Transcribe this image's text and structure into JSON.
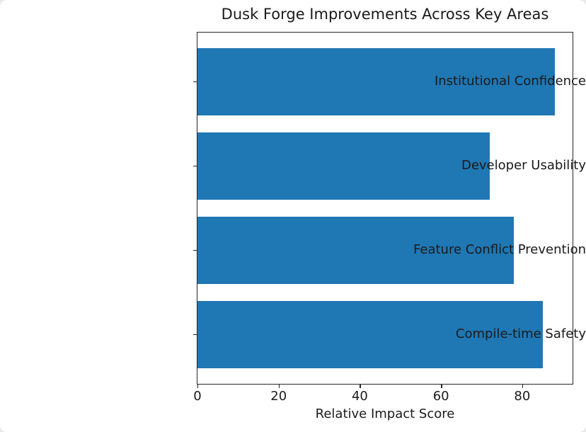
{
  "chart_data": {
    "type": "bar",
    "orientation": "horizontal",
    "title": "Dusk Forge Improvements Across Key Areas",
    "categories": [
      "Institutional Confidence",
      "Developer Usability",
      "Feature Conflict Prevention",
      "Compile-time Safety"
    ],
    "values": [
      88,
      72,
      78,
      85
    ],
    "xlabel": "Relative Impact Score",
    "ylabel": "",
    "xlim": [
      0,
      92.4
    ],
    "xticks": [
      0,
      20,
      40,
      60,
      80
    ],
    "bar_color": "#1f77b4",
    "frame_color": "#262626",
    "text_color": "#1a1a1a",
    "background": "#ffffff",
    "grid": false,
    "legend": false
  }
}
